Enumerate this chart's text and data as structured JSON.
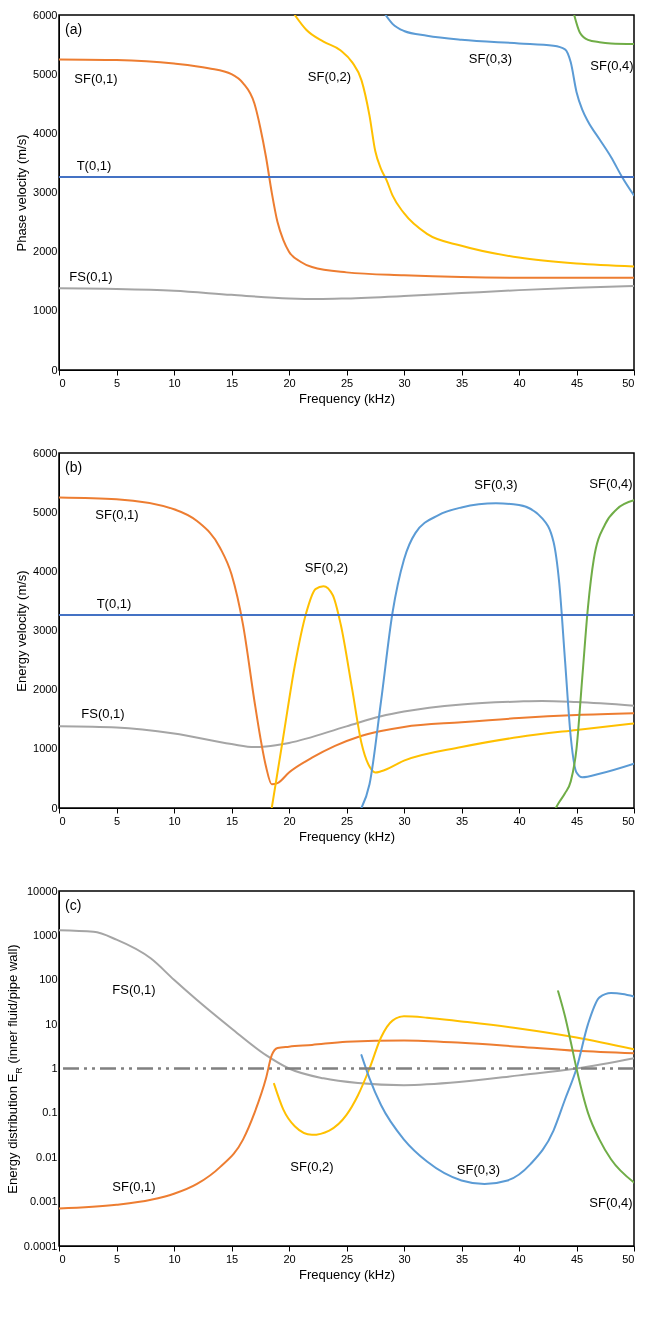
{
  "chart_data": [
    {
      "type": "line",
      "xlabel": "Frequency (kHz)",
      "ylabel": "Phase velocity (m/s)",
      "xlim": [
        0,
        50
      ],
      "xticks": [
        0,
        5,
        10,
        15,
        20,
        25,
        30,
        35,
        40,
        45,
        50
      ],
      "ylim": [
        0,
        6000
      ],
      "yticks": [
        0,
        1000,
        2000,
        3000,
        4000,
        5000,
        6000
      ],
      "series": [
        {
          "name": "FS(0,1)",
          "color": "#a5a5a5",
          "x": [
            0,
            5,
            10,
            15,
            20,
            22.5,
            25,
            30,
            35,
            40,
            45,
            50
          ],
          "values": [
            1380,
            1370,
            1340,
            1270,
            1210,
            1200,
            1210,
            1250,
            1300,
            1350,
            1390,
            1420
          ]
        },
        {
          "name": "SF(0,1)",
          "color": "#ed7d31",
          "x": [
            0,
            5,
            10,
            13,
            15,
            16,
            17,
            17.5,
            18,
            18.5,
            19,
            19.5,
            20,
            21,
            22,
            25,
            30,
            35,
            40,
            45,
            50
          ],
          "values": [
            5250,
            5240,
            5180,
            5100,
            5000,
            4850,
            4500,
            4100,
            3600,
            3000,
            2500,
            2200,
            2000,
            1830,
            1740,
            1650,
            1600,
            1570,
            1560,
            1560,
            1560
          ]
        },
        {
          "name": "SF(0,2)",
          "color": "#ffc000",
          "x": [
            20.5,
            21.5,
            23,
            24.5,
            25.5,
            26.3,
            27,
            27.5,
            28,
            28.5,
            29,
            30,
            32,
            35,
            40,
            45,
            50
          ],
          "values": [
            6000,
            5750,
            5550,
            5400,
            5200,
            4900,
            4300,
            3700,
            3400,
            3200,
            2950,
            2650,
            2300,
            2100,
            1900,
            1800,
            1750
          ]
        },
        {
          "name": "SF(0,3)",
          "color": "#5b9bd5",
          "x": [
            28.4,
            29,
            30,
            32,
            35,
            40,
            43,
            44,
            44.5,
            45,
            45.5,
            46,
            47,
            48,
            49,
            50
          ],
          "values": [
            6000,
            5850,
            5730,
            5650,
            5580,
            5520,
            5480,
            5420,
            5200,
            4700,
            4400,
            4200,
            3900,
            3600,
            3250,
            2950
          ]
        },
        {
          "name": "SF(0,4)",
          "color": "#70ad47",
          "x": [
            44.8,
            45.3,
            46,
            47,
            48,
            50
          ],
          "values": [
            6000,
            5700,
            5580,
            5540,
            5520,
            5510
          ]
        },
        {
          "name": "T(0,1)",
          "color": "#4472c4",
          "x": [
            0,
            50
          ],
          "values": [
            3260,
            3260
          ]
        }
      ],
      "annotations": [
        "(a)"
      ]
    },
    {
      "type": "line",
      "xlabel": "Frequency (kHz)",
      "ylabel": "Energy  velocity (m/s)",
      "xlim": [
        0,
        50
      ],
      "xticks": [
        0,
        5,
        10,
        15,
        20,
        25,
        30,
        35,
        40,
        45,
        50
      ],
      "ylim": [
        0,
        6000
      ],
      "yticks": [
        0,
        1000,
        2000,
        3000,
        4000,
        5000,
        6000
      ],
      "series": [
        {
          "name": "FS(0,1)",
          "color": "#a5a5a5",
          "x": [
            0,
            5,
            10,
            15,
            17,
            18,
            20,
            25,
            28,
            30,
            35,
            40,
            42,
            45,
            50
          ],
          "values": [
            1380,
            1360,
            1260,
            1080,
            1030,
            1040,
            1100,
            1380,
            1550,
            1630,
            1750,
            1800,
            1810,
            1790,
            1730
          ]
        },
        {
          "name": "SF(0,1)",
          "color": "#ed7d31",
          "x": [
            0,
            5,
            10,
            12,
            14,
            15,
            16,
            17,
            17.5,
            18,
            18.5,
            19,
            20,
            22,
            24,
            26,
            28,
            30,
            35,
            40,
            45,
            50
          ],
          "values": [
            5250,
            5220,
            5050,
            4850,
            4400,
            3950,
            3100,
            1800,
            1200,
            700,
            400,
            420,
            600,
            850,
            1050,
            1200,
            1300,
            1370,
            1450,
            1520,
            1570,
            1600
          ]
        },
        {
          "name": "SF(0,2)",
          "color": "#ffc000",
          "x": [
            18.5,
            19.5,
            20.5,
            21.5,
            22.3,
            23,
            23.8,
            24.5,
            25.5,
            26.3,
            27,
            27.5,
            28,
            30,
            35,
            40,
            45,
            50
          ],
          "values": [
            0,
            1200,
            2400,
            3300,
            3700,
            3750,
            3600,
            3100,
            2000,
            1100,
            700,
            600,
            620,
            800,
            1030,
            1200,
            1320,
            1430
          ]
        },
        {
          "name": "SF(0,3)",
          "color": "#5b9bd5",
          "x": [
            26.3,
            27,
            28,
            29,
            30,
            31,
            33,
            35,
            38,
            40,
            42,
            43,
            43.5,
            44,
            44.5,
            45,
            45.5,
            47,
            50
          ],
          "values": [
            0,
            400,
            1800,
            3300,
            4200,
            4650,
            4950,
            5080,
            5150,
            5120,
            4900,
            4500,
            3800,
            2500,
            1200,
            600,
            520,
            580,
            750
          ]
        },
        {
          "name": "SF(0,4)",
          "color": "#70ad47",
          "x": [
            43.2,
            43.5,
            44,
            44.5,
            45,
            45.5,
            46,
            46.5,
            47.5,
            48.5,
            50
          ],
          "values": [
            0,
            100,
            250,
            450,
            1000,
            2200,
            3400,
            4200,
            4800,
            5050,
            5200
          ]
        },
        {
          "name": "T(0,1)",
          "color": "#4472c4",
          "x": [
            0,
            50
          ],
          "values": [
            3260,
            3260
          ]
        }
      ],
      "annotations": [
        "(b)"
      ]
    },
    {
      "type": "line",
      "xlabel": "Frequency (kHz)",
      "ylabel": "Energy distribution E$_{R}$ (inner fluid/pipe wall)",
      "xlim": [
        0,
        50
      ],
      "xticks": [
        0,
        5,
        10,
        15,
        20,
        25,
        30,
        35,
        40,
        45,
        50
      ],
      "ylim": [
        0.0001,
        10000
      ],
      "yticks": [
        0.0001,
        0.001,
        0.01,
        0.1,
        1,
        10,
        100,
        1000,
        10000
      ],
      "log": true,
      "series": [
        {
          "name": "FS(0,1)",
          "color": "#a5a5a5",
          "x": [
            0,
            3,
            5,
            8,
            10,
            12,
            15,
            18,
            20,
            23,
            26,
            30,
            35,
            40,
            45,
            50
          ],
          "values": [
            1300,
            1200,
            800,
            300,
            100,
            35,
            8,
            2,
            1,
            0.6,
            0.47,
            0.42,
            0.5,
            0.7,
            1,
            1.7
          ]
        },
        {
          "name": "SF(0,1)",
          "color": "#ed7d31",
          "x": [
            0,
            5,
            8,
            10,
            12,
            14,
            16,
            17,
            18,
            18.5,
            19,
            20,
            22,
            25,
            30,
            35,
            40,
            45,
            50
          ],
          "values": [
            0.0007,
            0.00085,
            0.0011,
            0.0015,
            0.0025,
            0.006,
            0.025,
            0.1,
            0.6,
            2,
            2.9,
            3.1,
            3.4,
            4,
            4.3,
            3.8,
            3.1,
            2.5,
            2.2
          ]
        },
        {
          "name": "SF(0,2)",
          "color": "#ffc000",
          "x": [
            18.7,
            19.5,
            20.5,
            22,
            23.5,
            25,
            26,
            27,
            28,
            29,
            30,
            32,
            35,
            40,
            45,
            50
          ],
          "values": [
            0.45,
            0.12,
            0.05,
            0.032,
            0.04,
            0.09,
            0.25,
            1,
            5,
            12,
            15,
            14,
            11.5,
            8,
            5,
            2.7
          ]
        },
        {
          "name": "SF(0,3)",
          "color": "#5b9bd5",
          "x": [
            26.3,
            27,
            28,
            30,
            32,
            35,
            37,
            39,
            41,
            43,
            44,
            45,
            46,
            47,
            48,
            49,
            50
          ],
          "values": [
            2,
            0.6,
            0.15,
            0.025,
            0.008,
            0.003,
            0.0025,
            0.003,
            0.007,
            0.04,
            0.2,
            1,
            10,
            40,
            50,
            48,
            42
          ]
        },
        {
          "name": "SF(0,4)",
          "color": "#70ad47",
          "x": [
            43.4,
            44,
            44.5,
            45,
            46,
            47,
            48,
            50
          ],
          "values": [
            55,
            15,
            4,
            1,
            0.1,
            0.025,
            0.009,
            0.0027
          ]
        }
      ],
      "ref_lines": [
        {
          "axis": "y",
          "value": 1,
          "color": "#808080",
          "line_style": "dashed"
        }
      ],
      "annotations": [
        "(c)"
      ]
    }
  ]
}
